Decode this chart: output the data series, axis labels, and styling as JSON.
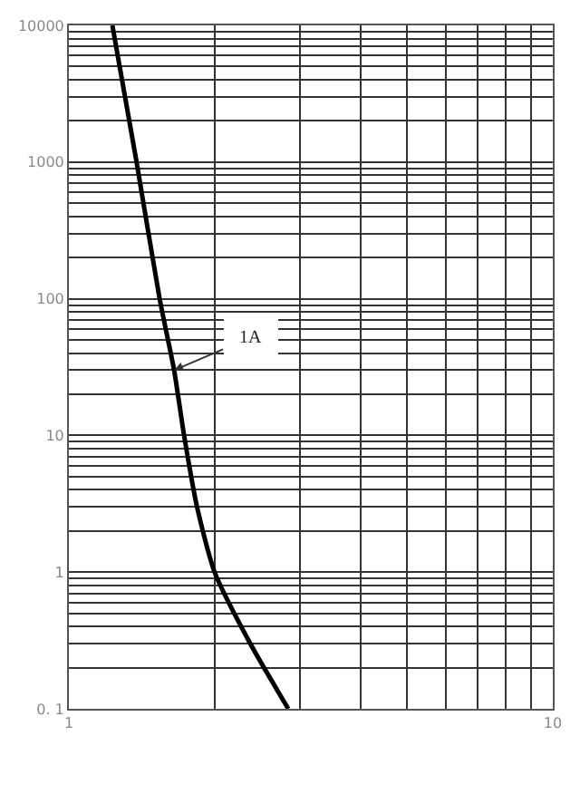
{
  "chart_data": {
    "type": "line",
    "log": "xy",
    "grid": true,
    "marker": "none",
    "line_style": "solid",
    "xlim": [
      1,
      10
    ],
    "ylim": [
      0.1,
      10000
    ],
    "xticks": [
      1,
      {
        "value": 2,
        "label": null
      },
      {
        "value": 3,
        "label": null
      },
      {
        "value": 4,
        "label": null
      },
      {
        "value": 5,
        "label": null
      },
      {
        "value": 6,
        "label": null
      },
      {
        "value": 7,
        "label": null
      },
      {
        "value": 8,
        "label": null
      },
      {
        "value": 9,
        "label": null
      },
      10
    ],
    "yticks": [
      {
        "value": 0.1,
        "label": "0. 1"
      },
      1,
      10,
      100,
      1000,
      10000
    ],
    "annotations": [
      {
        "text": "1A",
        "x": 1.65,
        "y": 30
      }
    ],
    "series": [
      {
        "color": "#000000",
        "x": [
          1.23,
          1.38,
          1.54,
          1.65,
          1.73,
          1.84,
          2.0,
          2.37,
          2.84
        ],
        "values": [
          10000,
          1000,
          100,
          30,
          10,
          3,
          1,
          0.3,
          0.1
        ]
      }
    ]
  }
}
